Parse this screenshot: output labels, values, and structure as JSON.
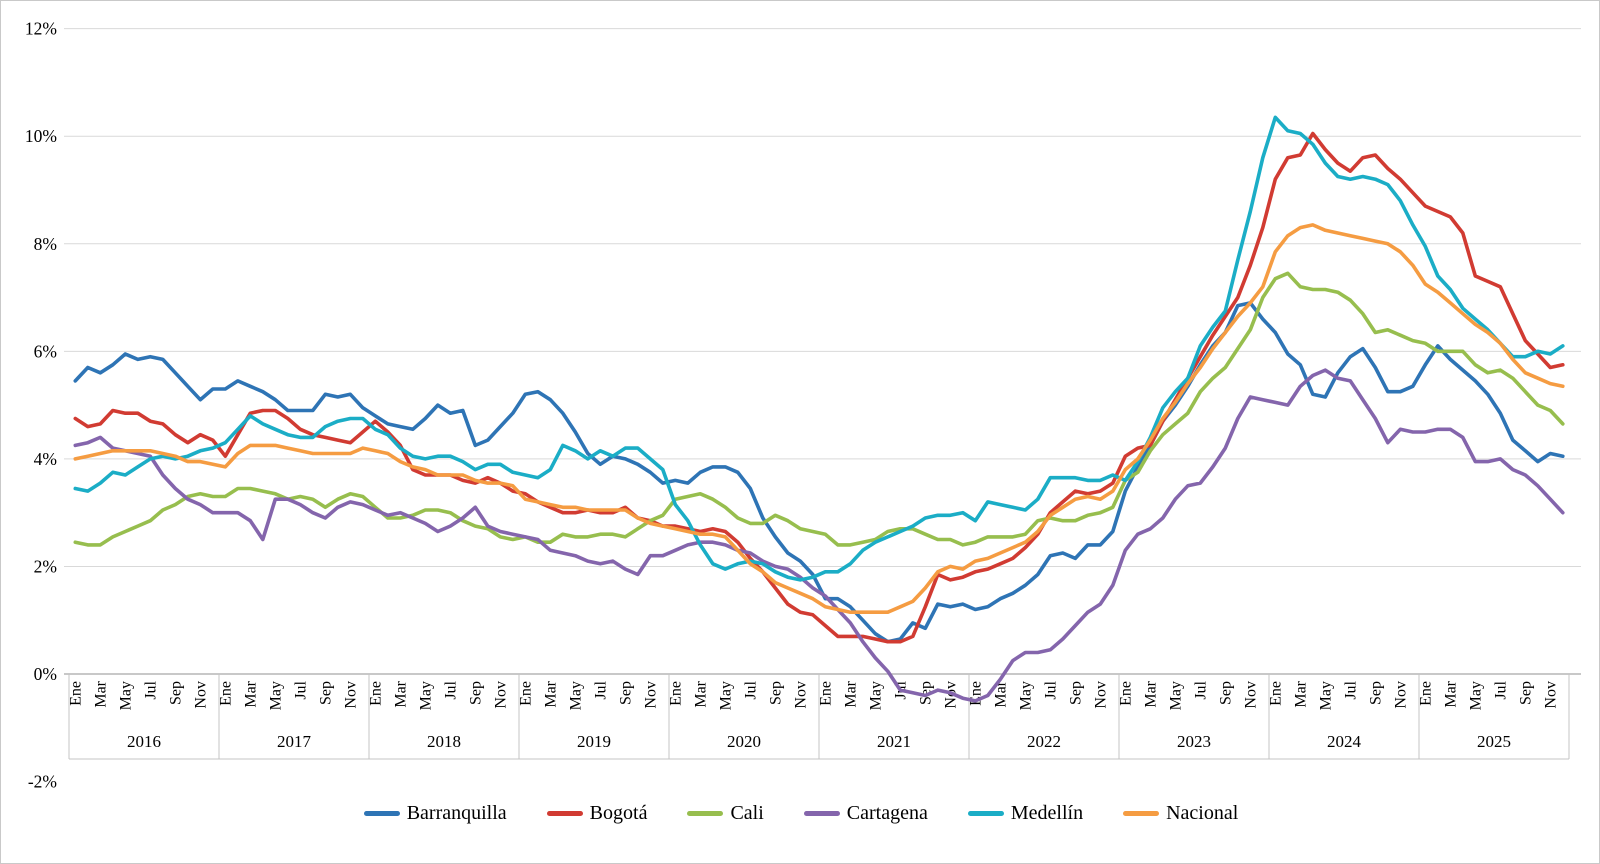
{
  "chart_data": {
    "type": "line",
    "title": "",
    "x_axis": {
      "years": [
        "2016",
        "2017",
        "2018",
        "2019",
        "2020",
        "2021",
        "2022",
        "2023",
        "2024",
        "2025"
      ],
      "month_tick_labels": [
        "Ene",
        "Mar",
        "May",
        "Jul",
        "Sep",
        "Nov"
      ],
      "months_per_year": 12,
      "labeled_month_indexes": [
        0,
        2,
        4,
        6,
        8,
        10
      ]
    },
    "y_axis": {
      "min": -2,
      "max": 12,
      "step": 2,
      "suffix": "%",
      "tick_labels": [
        "12%",
        "10%",
        "8%",
        "6%",
        "4%",
        "2%",
        "0%",
        "-2%"
      ],
      "grid": true
    },
    "legend_position": "bottom",
    "grid_color": "#d9d9d9",
    "axis_color": "#a6a6a6",
    "separator_color": "#c4c4c4",
    "series": [
      {
        "name": "Barranquilla",
        "color": "#2e74b5",
        "values": [
          5.45,
          5.7,
          5.6,
          5.75,
          5.95,
          5.85,
          5.9,
          5.85,
          5.6,
          5.35,
          5.1,
          5.3,
          5.3,
          5.45,
          5.35,
          5.25,
          5.1,
          4.9,
          4.9,
          4.9,
          5.2,
          5.15,
          5.2,
          4.95,
          4.8,
          4.65,
          4.6,
          4.55,
          4.75,
          5.0,
          4.85,
          4.9,
          4.25,
          4.35,
          4.6,
          4.85,
          5.2,
          5.25,
          5.1,
          4.85,
          4.5,
          4.1,
          3.9,
          4.05,
          4.0,
          3.9,
          3.75,
          3.55,
          3.6,
          3.55,
          3.75,
          3.85,
          3.85,
          3.75,
          3.45,
          2.9,
          2.55,
          2.25,
          2.1,
          1.85,
          1.4,
          1.4,
          1.25,
          1.0,
          0.75,
          0.6,
          0.65,
          0.95,
          0.85,
          1.3,
          1.25,
          1.3,
          1.2,
          1.25,
          1.4,
          1.5,
          1.65,
          1.85,
          2.2,
          2.25,
          2.15,
          2.4,
          2.4,
          2.65,
          3.4,
          3.85,
          4.25,
          4.7,
          5.0,
          5.35,
          5.75,
          6.1,
          6.35,
          6.85,
          6.9,
          6.6,
          6.35,
          5.95,
          5.75,
          5.2,
          5.15,
          5.6,
          5.9,
          6.05,
          5.7,
          5.25,
          5.25,
          5.35,
          5.75,
          6.1,
          5.85,
          5.65,
          5.45,
          5.2,
          4.85,
          4.35,
          4.15,
          3.95,
          4.1,
          4.05
        ]
      },
      {
        "name": "Bogotá",
        "color": "#d13b32",
        "values": [
          4.75,
          4.6,
          4.65,
          4.9,
          4.85,
          4.85,
          4.7,
          4.65,
          4.45,
          4.3,
          4.45,
          4.35,
          4.05,
          4.45,
          4.85,
          4.9,
          4.9,
          4.75,
          4.55,
          4.45,
          4.4,
          4.35,
          4.3,
          4.5,
          4.7,
          4.5,
          4.25,
          3.8,
          3.7,
          3.7,
          3.7,
          3.6,
          3.55,
          3.65,
          3.55,
          3.4,
          3.35,
          3.2,
          3.1,
          3.0,
          3.0,
          3.05,
          3.0,
          3.0,
          3.1,
          2.9,
          2.85,
          2.75,
          2.75,
          2.7,
          2.65,
          2.7,
          2.65,
          2.45,
          2.15,
          1.9,
          1.6,
          1.3,
          1.15,
          1.1,
          0.9,
          0.7,
          0.7,
          0.7,
          0.65,
          0.6,
          0.6,
          0.7,
          1.25,
          1.85,
          1.75,
          1.8,
          1.9,
          1.95,
          2.05,
          2.15,
          2.35,
          2.6,
          3.0,
          3.2,
          3.4,
          3.35,
          3.4,
          3.55,
          4.05,
          4.2,
          4.25,
          4.7,
          5.1,
          5.5,
          5.9,
          6.3,
          6.65,
          7.0,
          7.6,
          8.3,
          9.2,
          9.6,
          9.65,
          10.05,
          9.75,
          9.5,
          9.35,
          9.6,
          9.65,
          9.4,
          9.2,
          8.95,
          8.7,
          8.6,
          8.5,
          8.2,
          7.4,
          7.3,
          7.2,
          6.7,
          6.2,
          5.95,
          5.7,
          5.75
        ]
      },
      {
        "name": "Cali",
        "color": "#97be4e",
        "values": [
          2.45,
          2.4,
          2.4,
          2.55,
          2.65,
          2.75,
          2.85,
          3.05,
          3.15,
          3.3,
          3.35,
          3.3,
          3.3,
          3.45,
          3.45,
          3.4,
          3.35,
          3.25,
          3.3,
          3.25,
          3.1,
          3.25,
          3.35,
          3.3,
          3.1,
          2.9,
          2.9,
          2.95,
          3.05,
          3.05,
          3.0,
          2.85,
          2.75,
          2.7,
          2.55,
          2.5,
          2.55,
          2.45,
          2.45,
          2.6,
          2.55,
          2.55,
          2.6,
          2.6,
          2.55,
          2.7,
          2.85,
          2.95,
          3.25,
          3.3,
          3.35,
          3.25,
          3.1,
          2.9,
          2.8,
          2.8,
          2.95,
          2.85,
          2.7,
          2.65,
          2.6,
          2.4,
          2.4,
          2.45,
          2.5,
          2.65,
          2.7,
          2.7,
          2.6,
          2.5,
          2.5,
          2.4,
          2.45,
          2.55,
          2.55,
          2.55,
          2.6,
          2.85,
          2.9,
          2.85,
          2.85,
          2.95,
          3.0,
          3.1,
          3.6,
          3.75,
          4.15,
          4.45,
          4.65,
          4.85,
          5.25,
          5.5,
          5.7,
          6.05,
          6.4,
          7.0,
          7.35,
          7.45,
          7.2,
          7.15,
          7.15,
          7.1,
          6.95,
          6.7,
          6.35,
          6.4,
          6.3,
          6.2,
          6.15,
          6.0,
          6.0,
          6.0,
          5.75,
          5.6,
          5.65,
          5.5,
          5.25,
          5.0,
          4.9,
          4.65
        ]
      },
      {
        "name": "Cartagena",
        "color": "#8465ac",
        "values": [
          4.25,
          4.3,
          4.4,
          4.2,
          4.15,
          4.1,
          4.05,
          3.7,
          3.45,
          3.25,
          3.15,
          3.0,
          3.0,
          3.0,
          2.85,
          2.5,
          3.25,
          3.25,
          3.15,
          3.0,
          2.9,
          3.1,
          3.2,
          3.15,
          3.05,
          2.95,
          3.0,
          2.9,
          2.8,
          2.65,
          2.75,
          2.9,
          3.1,
          2.75,
          2.65,
          2.6,
          2.55,
          2.5,
          2.3,
          2.25,
          2.2,
          2.1,
          2.05,
          2.1,
          1.95,
          1.85,
          2.2,
          2.2,
          2.3,
          2.4,
          2.45,
          2.45,
          2.4,
          2.3,
          2.25,
          2.1,
          2.0,
          1.95,
          1.8,
          1.6,
          1.45,
          1.2,
          0.95,
          0.6,
          0.3,
          0.05,
          -0.3,
          -0.35,
          -0.4,
          -0.3,
          -0.35,
          -0.45,
          -0.5,
          -0.4,
          -0.1,
          0.25,
          0.4,
          0.4,
          0.45,
          0.65,
          0.9,
          1.15,
          1.3,
          1.65,
          2.3,
          2.6,
          2.7,
          2.9,
          3.25,
          3.5,
          3.55,
          3.85,
          4.2,
          4.75,
          5.15,
          5.1,
          5.05,
          5.0,
          5.35,
          5.55,
          5.65,
          5.5,
          5.45,
          5.1,
          4.75,
          4.3,
          4.55,
          4.5,
          4.5,
          4.55,
          4.55,
          4.4,
          3.95,
          3.95,
          4.0,
          3.8,
          3.7,
          3.5,
          3.25,
          3.0
        ]
      },
      {
        "name": "Medellín",
        "color": "#1badc6",
        "values": [
          3.45,
          3.4,
          3.55,
          3.75,
          3.7,
          3.85,
          4.0,
          4.05,
          4.0,
          4.05,
          4.15,
          4.2,
          4.3,
          4.55,
          4.8,
          4.65,
          4.55,
          4.45,
          4.4,
          4.4,
          4.6,
          4.7,
          4.75,
          4.75,
          4.55,
          4.45,
          4.2,
          4.05,
          4.0,
          4.05,
          4.05,
          3.95,
          3.8,
          3.9,
          3.9,
          3.75,
          3.7,
          3.65,
          3.8,
          4.25,
          4.15,
          4.0,
          4.15,
          4.05,
          4.2,
          4.2,
          4.0,
          3.8,
          3.15,
          2.85,
          2.4,
          2.05,
          1.95,
          2.05,
          2.1,
          2.05,
          1.9,
          1.8,
          1.75,
          1.8,
          1.9,
          1.9,
          2.05,
          2.3,
          2.45,
          2.55,
          2.65,
          2.75,
          2.9,
          2.95,
          2.95,
          3.0,
          2.85,
          3.2,
          3.15,
          3.1,
          3.05,
          3.25,
          3.65,
          3.65,
          3.65,
          3.6,
          3.6,
          3.7,
          3.6,
          3.95,
          4.4,
          4.95,
          5.25,
          5.5,
          6.1,
          6.45,
          6.75,
          7.7,
          8.6,
          9.6,
          10.35,
          10.1,
          10.05,
          9.85,
          9.5,
          9.25,
          9.2,
          9.25,
          9.2,
          9.1,
          8.8,
          8.35,
          7.95,
          7.4,
          7.15,
          6.8,
          6.6,
          6.4,
          6.15,
          5.9,
          5.9,
          6.0,
          5.95,
          6.1
        ]
      },
      {
        "name": "Nacional",
        "color": "#f59c42",
        "values": [
          4.0,
          4.05,
          4.1,
          4.15,
          4.15,
          4.15,
          4.15,
          4.1,
          4.05,
          3.95,
          3.95,
          3.9,
          3.85,
          4.1,
          4.25,
          4.25,
          4.25,
          4.2,
          4.15,
          4.1,
          4.1,
          4.1,
          4.1,
          4.2,
          4.15,
          4.1,
          3.95,
          3.85,
          3.8,
          3.7,
          3.7,
          3.7,
          3.6,
          3.55,
          3.55,
          3.5,
          3.25,
          3.2,
          3.15,
          3.1,
          3.1,
          3.05,
          3.05,
          3.05,
          3.05,
          2.9,
          2.8,
          2.75,
          2.7,
          2.65,
          2.6,
          2.6,
          2.55,
          2.3,
          2.05,
          1.9,
          1.7,
          1.6,
          1.5,
          1.4,
          1.25,
          1.2,
          1.15,
          1.15,
          1.15,
          1.15,
          1.25,
          1.35,
          1.6,
          1.9,
          2.0,
          1.95,
          2.1,
          2.15,
          2.25,
          2.35,
          2.45,
          2.65,
          2.95,
          3.1,
          3.25,
          3.3,
          3.25,
          3.4,
          3.8,
          4.0,
          4.35,
          4.75,
          5.05,
          5.4,
          5.7,
          6.05,
          6.35,
          6.65,
          6.9,
          7.2,
          7.85,
          8.15,
          8.3,
          8.35,
          8.25,
          8.2,
          8.15,
          8.1,
          8.05,
          8.0,
          7.85,
          7.6,
          7.25,
          7.1,
          6.9,
          6.7,
          6.5,
          6.35,
          6.15,
          5.85,
          5.6,
          5.5,
          5.4,
          5.35
        ]
      }
    ]
  }
}
